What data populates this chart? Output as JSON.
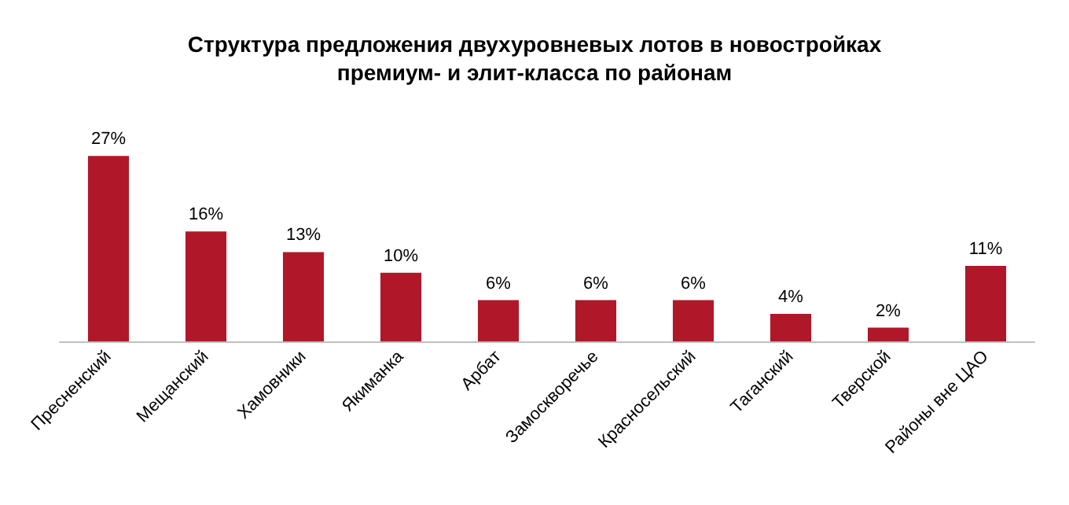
{
  "chart_data": {
    "type": "bar",
    "title": "Структура предложения двухуровневых лотов в новостройках\nпремиум- и элит-класса по районам",
    "categories": [
      "Пресненский",
      "Мещанский",
      "Хамовники",
      "Якиманка",
      "Арбат",
      "Замоскворечье",
      "Красносельский",
      "Таганский",
      "Тверской",
      "Районы вне ЦАО"
    ],
    "values": [
      27,
      16,
      13,
      10,
      6,
      6,
      6,
      4,
      2,
      11
    ],
    "value_labels": [
      "27%",
      "16%",
      "13%",
      "10%",
      "6%",
      "6%",
      "6%",
      "4%",
      "2%",
      "11%"
    ],
    "color": "#b0182a"
  }
}
